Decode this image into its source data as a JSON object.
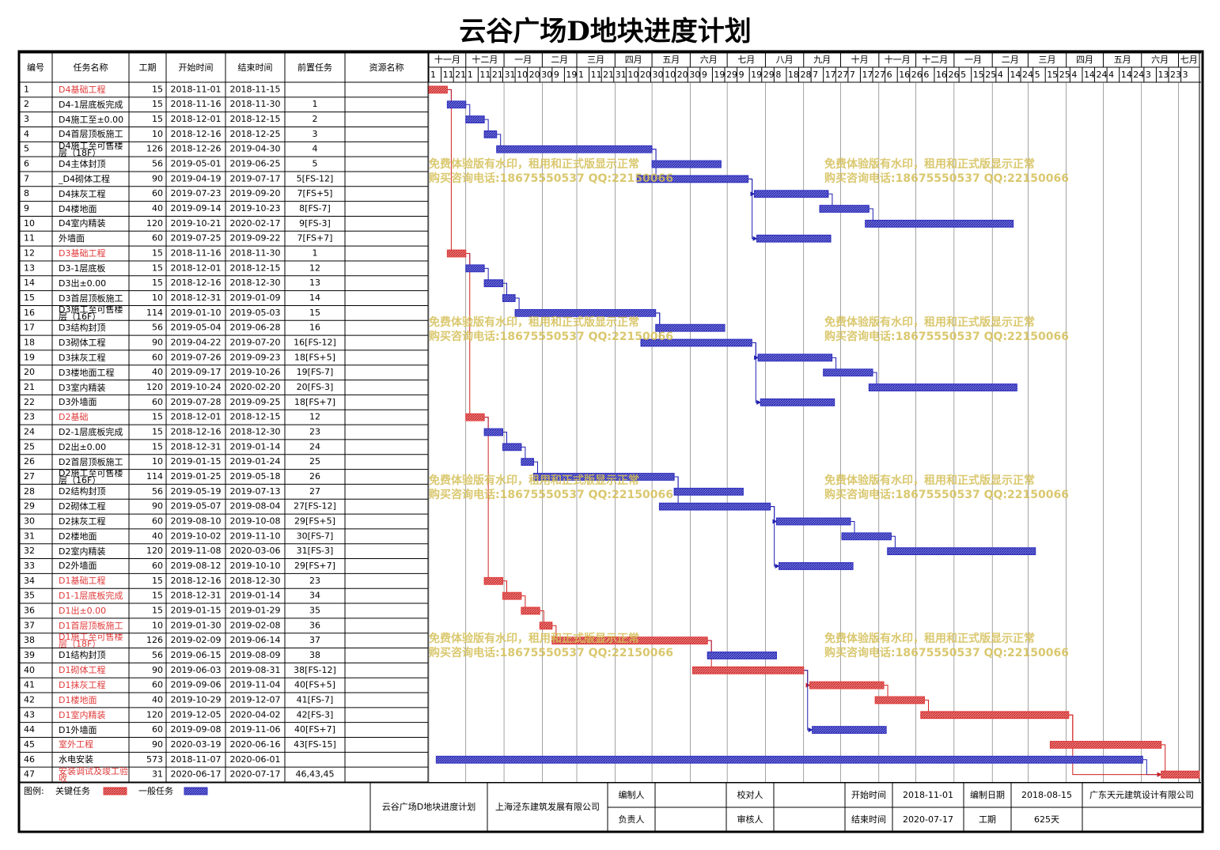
{
  "title": "云谷广场D地块进度计划",
  "chart_data": {
    "type": "gantt",
    "columns": [
      "编号",
      "任务名称",
      "工期",
      "开始时间",
      "结束时间",
      "前置任务",
      "资源名称"
    ],
    "critical_color": "#e03a3a",
    "normal_color": "#2f2fc0",
    "xlim": [
      "2018-11-01",
      "2020-07-18"
    ],
    "months": [
      {
        "value": "2018-11-01",
        "label": "十一月"
      },
      {
        "value": "2018-12-01",
        "label": "十二月"
      },
      {
        "value": "2019-01-01",
        "label": "一月"
      },
      {
        "value": "2019-02-01",
        "label": "二月"
      },
      {
        "value": "2019-03-01",
        "label": "三月"
      },
      {
        "value": "2019-04-01",
        "label": "四月"
      },
      {
        "value": "2019-05-01",
        "label": "五月"
      },
      {
        "value": "2019-06-01",
        "label": "六月"
      },
      {
        "value": "2019-07-01",
        "label": "七月"
      },
      {
        "value": "2019-08-01",
        "label": "八月"
      },
      {
        "value": "2019-09-01",
        "label": "九月"
      },
      {
        "value": "2019-10-01",
        "label": "十月"
      },
      {
        "value": "2019-11-01",
        "label": "十一月"
      },
      {
        "value": "2019-12-01",
        "label": "十二月"
      },
      {
        "value": "2020-01-01",
        "label": "一月"
      },
      {
        "value": "2020-02-01",
        "label": "二月"
      },
      {
        "value": "2020-03-01",
        "label": "三月"
      },
      {
        "value": "2020-04-01",
        "label": "四月"
      },
      {
        "value": "2020-05-01",
        "label": "五月"
      },
      {
        "value": "2020-06-01",
        "label": "六月"
      },
      {
        "value": "2020-07-01",
        "label": "七月"
      }
    ],
    "day_ticks": [
      {
        "value": "2018-11-01",
        "label": "1"
      },
      {
        "value": "2018-11-11",
        "label": "11"
      },
      {
        "value": "2018-11-21",
        "label": "21"
      },
      {
        "value": "2018-12-01",
        "label": "1"
      },
      {
        "value": "2018-12-11",
        "label": "11"
      },
      {
        "value": "2018-12-21",
        "label": "21"
      },
      {
        "value": "2018-12-31",
        "label": "31"
      },
      {
        "value": "2019-01-10",
        "label": "10"
      },
      {
        "value": "2019-01-20",
        "label": "20"
      },
      {
        "value": "2019-01-30",
        "label": "30"
      },
      {
        "value": "2019-02-09",
        "label": "9"
      },
      {
        "value": "2019-02-19",
        "label": "19"
      },
      {
        "value": "2019-03-01",
        "label": "1"
      },
      {
        "value": "2019-03-11",
        "label": "11"
      },
      {
        "value": "2019-03-21",
        "label": "21"
      },
      {
        "value": "2019-03-31",
        "label": "31"
      },
      {
        "value": "2019-04-10",
        "label": "10"
      },
      {
        "value": "2019-04-20",
        "label": "20"
      },
      {
        "value": "2019-04-30",
        "label": "30"
      },
      {
        "value": "2019-05-10",
        "label": "10"
      },
      {
        "value": "2019-05-20",
        "label": "20"
      },
      {
        "value": "2019-05-30",
        "label": "30"
      },
      {
        "value": "2019-06-09",
        "label": "9"
      },
      {
        "value": "2019-06-19",
        "label": "19"
      },
      {
        "value": "2019-06-29",
        "label": "29"
      },
      {
        "value": "2019-07-09",
        "label": "9"
      },
      {
        "value": "2019-07-19",
        "label": "19"
      },
      {
        "value": "2019-07-29",
        "label": "29"
      },
      {
        "value": "2019-08-08",
        "label": "8"
      },
      {
        "value": "2019-08-18",
        "label": "18"
      },
      {
        "value": "2019-08-28",
        "label": "28"
      },
      {
        "value": "2019-09-07",
        "label": "7"
      },
      {
        "value": "2019-09-17",
        "label": "17"
      },
      {
        "value": "2019-09-27",
        "label": "27"
      },
      {
        "value": "2019-10-07",
        "label": "7"
      },
      {
        "value": "2019-10-17",
        "label": "17"
      },
      {
        "value": "2019-10-27",
        "label": "27"
      },
      {
        "value": "2019-11-06",
        "label": "6"
      },
      {
        "value": "2019-11-16",
        "label": "16"
      },
      {
        "value": "2019-11-26",
        "label": "26"
      },
      {
        "value": "2019-12-06",
        "label": "6"
      },
      {
        "value": "2019-12-16",
        "label": "16"
      },
      {
        "value": "2019-12-26",
        "label": "26"
      },
      {
        "value": "2020-01-05",
        "label": "5"
      },
      {
        "value": "2020-01-15",
        "label": "15"
      },
      {
        "value": "2020-01-25",
        "label": "25"
      },
      {
        "value": "2020-02-04",
        "label": "4"
      },
      {
        "value": "2020-02-14",
        "label": "14"
      },
      {
        "value": "2020-02-24",
        "label": "24"
      },
      {
        "value": "2020-03-05",
        "label": "5"
      },
      {
        "value": "2020-03-15",
        "label": "15"
      },
      {
        "value": "2020-03-25",
        "label": "25"
      },
      {
        "value": "2020-04-04",
        "label": "4"
      },
      {
        "value": "2020-04-14",
        "label": "14"
      },
      {
        "value": "2020-04-24",
        "label": "24"
      },
      {
        "value": "2020-05-04",
        "label": "4"
      },
      {
        "value": "2020-05-14",
        "label": "14"
      },
      {
        "value": "2020-05-24",
        "label": "24"
      },
      {
        "value": "2020-06-03",
        "label": "3"
      },
      {
        "value": "2020-06-13",
        "label": "13"
      },
      {
        "value": "2020-06-23",
        "label": "23"
      },
      {
        "value": "2020-07-03",
        "label": "3"
      }
    ],
    "watermark": [
      "免费体验版有水印，租用和正式版显示正常",
      "购买咨询电话:18675550537 QQ:22150066"
    ],
    "tasks": [
      {
        "id": 1,
        "name": "D4基础工程",
        "duration": 15,
        "start": "2018-11-01",
        "end": "2018-11-15",
        "pred": null,
        "critical": true
      },
      {
        "id": 2,
        "name": "D4-1层底板完成",
        "duration": 15,
        "start": "2018-11-16",
        "end": "2018-11-30",
        "pred": "1",
        "critical": false
      },
      {
        "id": 3,
        "name": "D4施工至±0.00",
        "duration": 15,
        "start": "2018-12-01",
        "end": "2018-12-15",
        "pred": "2",
        "critical": false
      },
      {
        "id": 4,
        "name": "D4首层顶板施工",
        "duration": 10,
        "start": "2018-12-16",
        "end": "2018-12-25",
        "pred": "3",
        "critical": false
      },
      {
        "id": 5,
        "name": "D4施工至可售楼层（18F）",
        "duration": 126,
        "start": "2018-12-26",
        "end": "2019-04-30",
        "pred": "4",
        "critical": false
      },
      {
        "id": 6,
        "name": "D4主体封顶",
        "duration": 56,
        "start": "2019-05-01",
        "end": "2019-06-25",
        "pred": "5",
        "critical": false
      },
      {
        "id": 7,
        "name": "_D4砌体工程",
        "duration": 90,
        "start": "2019-04-19",
        "end": "2019-07-17",
        "pred": "5[FS-12]",
        "critical": false
      },
      {
        "id": 8,
        "name": "D4抹灰工程",
        "duration": 60,
        "start": "2019-07-23",
        "end": "2019-09-20",
        "pred": "7[FS+5]",
        "critical": false
      },
      {
        "id": 9,
        "name": "D4楼地面",
        "duration": 40,
        "start": "2019-09-14",
        "end": "2019-10-23",
        "pred": "8[FS-7]",
        "critical": false
      },
      {
        "id": 10,
        "name": "D4室内精装",
        "duration": 120,
        "start": "2019-10-21",
        "end": "2020-02-17",
        "pred": "9[FS-3]",
        "critical": false
      },
      {
        "id": 11,
        "name": "外墙面",
        "duration": 60,
        "start": "2019-07-25",
        "end": "2019-09-22",
        "pred": "7[FS+7]",
        "critical": false
      },
      {
        "id": 12,
        "name": "D3基础工程",
        "duration": 15,
        "start": "2018-11-16",
        "end": "2018-11-30",
        "pred": "1",
        "critical": true
      },
      {
        "id": 13,
        "name": "D3-1层底板",
        "duration": 15,
        "start": "2018-12-01",
        "end": "2018-12-15",
        "pred": "12",
        "critical": false
      },
      {
        "id": 14,
        "name": "D3出±0.00",
        "duration": 15,
        "start": "2018-12-16",
        "end": "2018-12-30",
        "pred": "13",
        "critical": false
      },
      {
        "id": 15,
        "name": "D3首层顶板施工",
        "duration": 10,
        "start": "2018-12-31",
        "end": "2019-01-09",
        "pred": "14",
        "critical": false
      },
      {
        "id": 16,
        "name": "D3施工至可售楼层（16F）",
        "duration": 114,
        "start": "2019-01-10",
        "end": "2019-05-03",
        "pred": "15",
        "critical": false
      },
      {
        "id": 17,
        "name": "D3结构封顶",
        "duration": 56,
        "start": "2019-05-04",
        "end": "2019-06-28",
        "pred": "16",
        "critical": false
      },
      {
        "id": 18,
        "name": "D3砌体工程",
        "duration": 90,
        "start": "2019-04-22",
        "end": "2019-07-20",
        "pred": "16[FS-12]",
        "critical": false
      },
      {
        "id": 19,
        "name": "D3抹灰工程",
        "duration": 60,
        "start": "2019-07-26",
        "end": "2019-09-23",
        "pred": "18[FS+5]",
        "critical": false
      },
      {
        "id": 20,
        "name": "D3楼地面工程",
        "duration": 40,
        "start": "2019-09-17",
        "end": "2019-10-26",
        "pred": "19[FS-7]",
        "critical": false
      },
      {
        "id": 21,
        "name": "D3室内精装",
        "duration": 120,
        "start": "2019-10-24",
        "end": "2020-02-20",
        "pred": "20[FS-3]",
        "critical": false
      },
      {
        "id": 22,
        "name": "D3外墙面",
        "duration": 60,
        "start": "2019-07-28",
        "end": "2019-09-25",
        "pred": "18[FS+7]",
        "critical": false
      },
      {
        "id": 23,
        "name": "D2基础",
        "duration": 15,
        "start": "2018-12-01",
        "end": "2018-12-15",
        "pred": "12",
        "critical": true
      },
      {
        "id": 24,
        "name": "D2-1层底板完成",
        "duration": 15,
        "start": "2018-12-16",
        "end": "2018-12-30",
        "pred": "23",
        "critical": false
      },
      {
        "id": 25,
        "name": "D2出±0.00",
        "duration": 15,
        "start": "2018-12-31",
        "end": "2019-01-14",
        "pred": "24",
        "critical": false
      },
      {
        "id": 26,
        "name": "D2首层顶板施工",
        "duration": 10,
        "start": "2019-01-15",
        "end": "2019-01-24",
        "pred": "25",
        "critical": false
      },
      {
        "id": 27,
        "name": "D2施工至可售楼层（16F）",
        "duration": 114,
        "start": "2019-01-25",
        "end": "2019-05-18",
        "pred": "26",
        "critical": false
      },
      {
        "id": 28,
        "name": "D2结构封顶",
        "duration": 56,
        "start": "2019-05-19",
        "end": "2019-07-13",
        "pred": "27",
        "critical": false
      },
      {
        "id": 29,
        "name": "D2砌体工程",
        "duration": 90,
        "start": "2019-05-07",
        "end": "2019-08-04",
        "pred": "27[FS-12]",
        "critical": false
      },
      {
        "id": 30,
        "name": "D2抹灰工程",
        "duration": 60,
        "start": "2019-08-10",
        "end": "2019-10-08",
        "pred": "29[FS+5]",
        "critical": false
      },
      {
        "id": 31,
        "name": "D2楼地面",
        "duration": 40,
        "start": "2019-10-02",
        "end": "2019-11-10",
        "pred": "30[FS-7]",
        "critical": false
      },
      {
        "id": 32,
        "name": "D2室内精装",
        "duration": 120,
        "start": "2019-11-08",
        "end": "2020-03-06",
        "pred": "31[FS-3]",
        "critical": false
      },
      {
        "id": 33,
        "name": "D2外墙面",
        "duration": 60,
        "start": "2019-08-12",
        "end": "2019-10-10",
        "pred": "29[FS+7]",
        "critical": false
      },
      {
        "id": 34,
        "name": "D1基础工程",
        "duration": 15,
        "start": "2018-12-16",
        "end": "2018-12-30",
        "pred": "23",
        "critical": true
      },
      {
        "id": 35,
        "name": "D1-1层底板完成",
        "duration": 15,
        "start": "2018-12-31",
        "end": "2019-01-14",
        "pred": "34",
        "critical": true
      },
      {
        "id": 36,
        "name": "D1出±0.00",
        "duration": 15,
        "start": "2019-01-15",
        "end": "2019-01-29",
        "pred": "35",
        "critical": true
      },
      {
        "id": 37,
        "name": "D1首层顶板施工",
        "duration": 10,
        "start": "2019-01-30",
        "end": "2019-02-08",
        "pred": "36",
        "critical": true
      },
      {
        "id": 38,
        "name": "D1施工至可售楼层（18F）",
        "duration": 126,
        "start": "2019-02-09",
        "end": "2019-06-14",
        "pred": "37",
        "critical": true
      },
      {
        "id": 39,
        "name": "D1结构封顶",
        "duration": 56,
        "start": "2019-06-15",
        "end": "2019-08-09",
        "pred": "38",
        "critical": false
      },
      {
        "id": 40,
        "name": "D1砌体工程",
        "duration": 90,
        "start": "2019-06-03",
        "end": "2019-08-31",
        "pred": "38[FS-12]",
        "critical": true
      },
      {
        "id": 41,
        "name": "D1抹灰工程",
        "duration": 60,
        "start": "2019-09-06",
        "end": "2019-11-04",
        "pred": "40[FS+5]",
        "critical": true
      },
      {
        "id": 42,
        "name": "D1楼地面",
        "duration": 40,
        "start": "2019-10-29",
        "end": "2019-12-07",
        "pred": "41[FS-7]",
        "critical": true
      },
      {
        "id": 43,
        "name": "D1室内精装",
        "duration": 120,
        "start": "2019-12-05",
        "end": "2020-04-02",
        "pred": "42[FS-3]",
        "critical": true
      },
      {
        "id": 44,
        "name": "D1外墙面",
        "duration": 60,
        "start": "2019-09-08",
        "end": "2019-11-06",
        "pred": "40[FS+7]",
        "critical": false
      },
      {
        "id": 45,
        "name": "室外工程",
        "duration": 90,
        "start": "2020-03-19",
        "end": "2020-06-16",
        "pred": "43[FS-15]",
        "critical": true
      },
      {
        "id": 46,
        "name": "水电安装",
        "duration": 573,
        "start": "2018-11-07",
        "end": "2020-06-01",
        "pred": null,
        "critical": false
      },
      {
        "id": 47,
        "name": "安装调试及竣工验收",
        "duration": 31,
        "start": "2020-06-17",
        "end": "2020-07-17",
        "pred": "46,43,45",
        "critical": true
      }
    ]
  },
  "legend": {
    "label": "图例:",
    "critical": "关键任务",
    "normal": "一般任务"
  },
  "footer": {
    "project": "云谷广场D地块进度计划",
    "company": "上海泾东建筑发展有限公司",
    "compiler": "编制人",
    "manager": "负责人",
    "checker": "校对人",
    "reviewer": "审核人",
    "start_label": "开始时间",
    "start": "2018-11-01",
    "end_label": "结束时间",
    "end": "2020-07-17",
    "date_label": "编制日期",
    "date": "2018-08-15",
    "duration_label": "工期",
    "duration": "625天",
    "designer": "广东天元建筑设计有限公司"
  }
}
